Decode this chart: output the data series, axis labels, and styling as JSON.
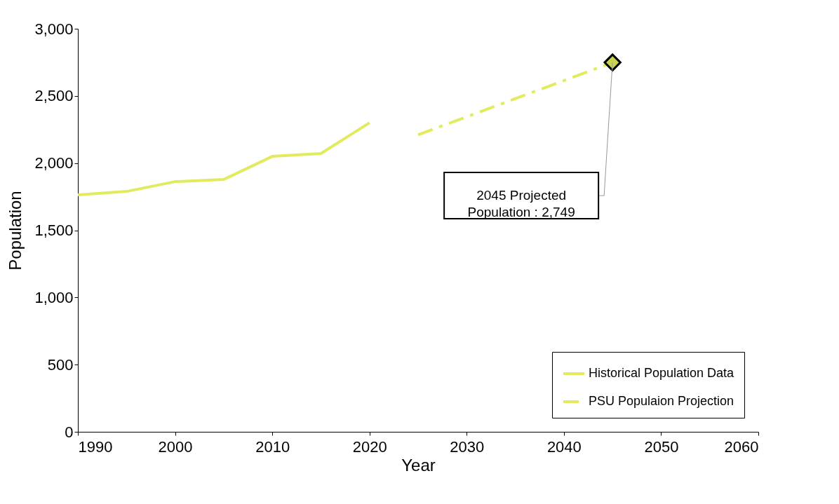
{
  "chart_data": {
    "type": "line",
    "xlabel": "Year",
    "ylabel": "Population",
    "xlim": [
      1990,
      2060
    ],
    "xticks": [
      1990,
      2000,
      2010,
      2020,
      2030,
      2040,
      2050,
      2060
    ],
    "ylim": [
      0,
      3000
    ],
    "yticks": [
      0,
      500,
      {
        "value": 1000,
        "label": "1,000"
      },
      {
        "value": 1500,
        "label": "1,500"
      },
      {
        "value": 2000,
        "label": "2,000"
      },
      {
        "value": 2500,
        "label": "2,500"
      },
      {
        "value": 3000,
        "label": "3,000"
      }
    ],
    "grid": false,
    "legend": "bottom right",
    "series": [
      {
        "name": "Historical Population Data",
        "color": "#e2ea5e",
        "line_style": "solid",
        "x": [
          1990,
          1995,
          2000,
          2005,
          2010,
          2015,
          2020
        ],
        "values": [
          1763,
          1789,
          1862,
          1878,
          2050,
          2071,
          2300
        ]
      },
      {
        "name": "PSU Populaion Projection",
        "color": "#e2ea5e",
        "line_style": "dashdot",
        "x": [
          2025,
          2045
        ],
        "values": [
          2210,
          2749
        ]
      },
      {
        "type": "scatter",
        "marker": "diamond",
        "color": "#c8d452",
        "x": [
          2045
        ],
        "values": [
          2749
        ]
      }
    ],
    "annotations": [
      "2045 Projected Population : 2,749"
    ]
  }
}
